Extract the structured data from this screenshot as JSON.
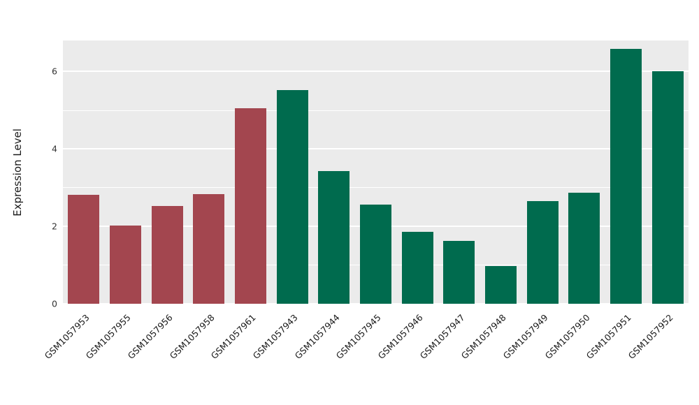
{
  "chart_data": {
    "type": "bar",
    "title": "",
    "xlabel": "",
    "ylabel": "Expression Level",
    "ylim": [
      0,
      6.8
    ],
    "yticks": [
      0,
      2,
      4,
      6
    ],
    "yticks_minor": [
      1,
      3,
      5
    ],
    "grid": true,
    "legend_position": "none",
    "categories": [
      "GSM1057953",
      "GSM1057955",
      "GSM1057956",
      "GSM1057958",
      "GSM1057961",
      "GSM1057943",
      "GSM1057944",
      "GSM1057945",
      "GSM1057946",
      "GSM1057947",
      "GSM1057948",
      "GSM1057949",
      "GSM1057950",
      "GSM1057951",
      "GSM1057952"
    ],
    "values": [
      2.82,
      2.02,
      2.52,
      2.83,
      5.05,
      5.52,
      3.43,
      2.57,
      1.85,
      1.63,
      0.98,
      2.65,
      2.87,
      6.58,
      6.0
    ],
    "bar_colors": [
      "#a3464f",
      "#a3464f",
      "#a3464f",
      "#a3464f",
      "#a3464f",
      "#006b4e",
      "#006b4e",
      "#006b4e",
      "#006b4e",
      "#006b4e",
      "#006b4e",
      "#006b4e",
      "#006b4e",
      "#006b4e",
      "#006b4e"
    ],
    "group_colors": {
      "group1": "#a3464f",
      "group2": "#006b4e"
    }
  },
  "styles": {
    "plot_background": "#ebebeb",
    "grid_color": "#ffffff",
    "figure_background": "#ffffff",
    "text_color": "#1a1a1a"
  }
}
